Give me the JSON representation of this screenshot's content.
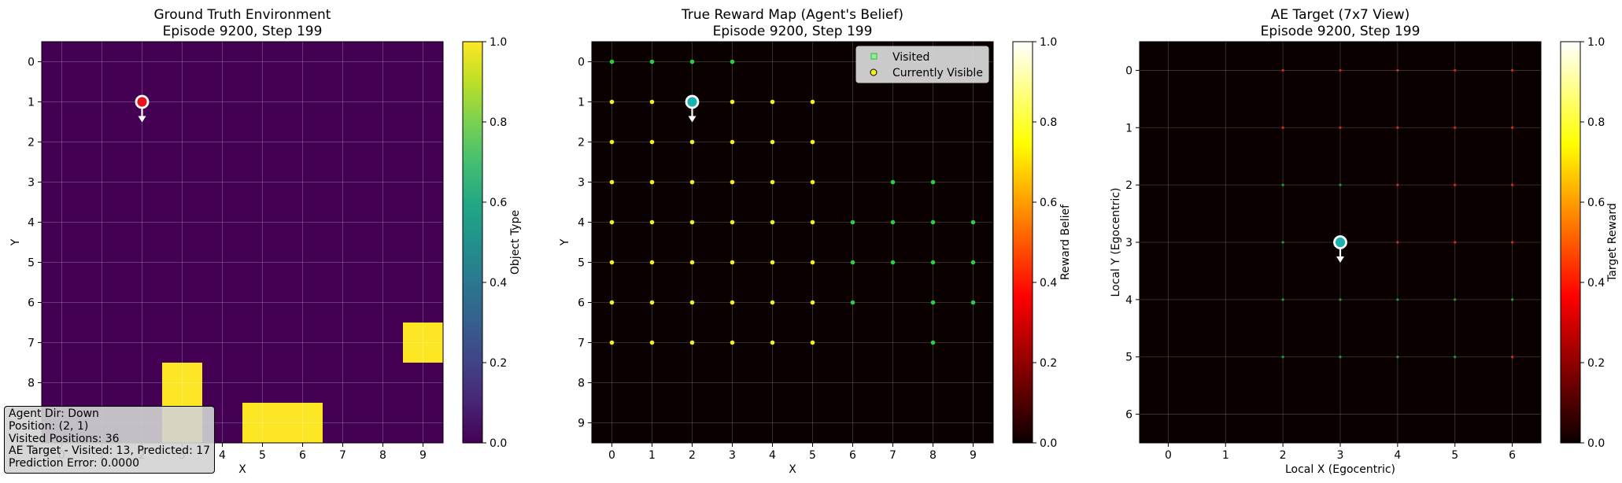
{
  "chart_data": [
    {
      "type": "heatmap",
      "title": "Ground Truth Environment",
      "subtitle": "Episode 9200, Step 199",
      "xlabel": "X",
      "ylabel": "Y",
      "colorbar_label": "Object Type",
      "colorbar_ticks": [
        "0.0",
        "0.2",
        "0.4",
        "0.6",
        "0.8",
        "1.0"
      ],
      "colormap": "viridis",
      "xlim": [
        -0.5,
        9.5
      ],
      "ylim": [
        9.5,
        -0.5
      ],
      "x_ticks": [
        "0",
        "1",
        "2",
        "3",
        "4",
        "5",
        "6",
        "7",
        "8",
        "9"
      ],
      "y_ticks": [
        "0",
        "1",
        "2",
        "3",
        "4",
        "5",
        "6",
        "7",
        "8",
        "9"
      ],
      "grid": true,
      "background_value": 0.0,
      "cells_value_1": [
        [
          9,
          7
        ],
        [
          3,
          8
        ],
        [
          3,
          9
        ],
        [
          5,
          9
        ],
        [
          6,
          9
        ]
      ],
      "agent": {
        "x": 2,
        "y": 1,
        "color": "#e8141c",
        "direction": "down"
      },
      "info_lines": [
        "Agent Dir: Down",
        "Position: (2, 1)",
        "Visited Positions: 36",
        "AE Target - Visited: 13, Predicted: 17",
        "Prediction Error: 0.0000"
      ]
    },
    {
      "type": "heatmap",
      "title": "True Reward Map (Agent's Belief)",
      "subtitle": "Episode 9200, Step 199",
      "xlabel": "X",
      "ylabel": "Y",
      "colorbar_label": "Reward Belief",
      "colorbar_ticks": [
        "0.0",
        "0.2",
        "0.4",
        "0.6",
        "0.8",
        "1.0"
      ],
      "colormap": "hot",
      "xlim": [
        -0.5,
        9.5
      ],
      "ylim": [
        9.5,
        -0.5
      ],
      "x_ticks": [
        "0",
        "1",
        "2",
        "3",
        "4",
        "5",
        "6",
        "7",
        "8",
        "9"
      ],
      "y_ticks": [
        "0",
        "1",
        "2",
        "3",
        "4",
        "5",
        "6",
        "7",
        "8",
        "9"
      ],
      "grid": true,
      "legend": {
        "location": "top-right",
        "entries": [
          {
            "label": "Visited",
            "marker": "square",
            "color": "#2ecc40"
          },
          {
            "label": "Currently Visible",
            "marker": "circle",
            "color": "#f0f020"
          }
        ]
      },
      "visited_points": [
        [
          0,
          0
        ],
        [
          1,
          0
        ],
        [
          2,
          0
        ],
        [
          3,
          0
        ],
        [
          7,
          3
        ],
        [
          8,
          3
        ],
        [
          6,
          4
        ],
        [
          7,
          4
        ],
        [
          8,
          4
        ],
        [
          9,
          4
        ],
        [
          6,
          5
        ],
        [
          7,
          5
        ],
        [
          8,
          5
        ],
        [
          9,
          5
        ],
        [
          6,
          6
        ],
        [
          8,
          6
        ],
        [
          9,
          6
        ],
        [
          8,
          7
        ]
      ],
      "visible_points": [
        [
          0,
          1
        ],
        [
          1,
          1
        ],
        [
          3,
          1
        ],
        [
          4,
          1
        ],
        [
          5,
          1
        ],
        [
          0,
          2
        ],
        [
          1,
          2
        ],
        [
          2,
          2
        ],
        [
          3,
          2
        ],
        [
          4,
          2
        ],
        [
          5,
          2
        ],
        [
          0,
          3
        ],
        [
          1,
          3
        ],
        [
          2,
          3
        ],
        [
          3,
          3
        ],
        [
          4,
          3
        ],
        [
          5,
          3
        ],
        [
          0,
          4
        ],
        [
          1,
          4
        ],
        [
          2,
          4
        ],
        [
          3,
          4
        ],
        [
          4,
          4
        ],
        [
          5,
          4
        ],
        [
          0,
          5
        ],
        [
          1,
          5
        ],
        [
          2,
          5
        ],
        [
          3,
          5
        ],
        [
          4,
          5
        ],
        [
          5,
          5
        ],
        [
          0,
          6
        ],
        [
          1,
          6
        ],
        [
          2,
          6
        ],
        [
          3,
          6
        ],
        [
          4,
          6
        ],
        [
          5,
          6
        ],
        [
          0,
          7
        ],
        [
          1,
          7
        ],
        [
          2,
          7
        ],
        [
          3,
          7
        ],
        [
          4,
          7
        ],
        [
          5,
          7
        ]
      ],
      "agent": {
        "x": 2,
        "y": 1,
        "color": "#1ab3b0",
        "direction": "down"
      }
    },
    {
      "type": "heatmap",
      "title": "AE Target (7x7 View)",
      "subtitle": "Episode 9200, Step 199",
      "xlabel": "Local X (Egocentric)",
      "ylabel": "Local Y (Egocentric)",
      "colorbar_label": "Target Reward",
      "colorbar_ticks": [
        "0.0",
        "0.2",
        "0.4",
        "0.6",
        "0.8",
        "1.0"
      ],
      "colormap": "hot",
      "xlim": [
        -0.5,
        6.5
      ],
      "ylim": [
        6.5,
        -0.5
      ],
      "x_ticks": [
        "0",
        "1",
        "2",
        "3",
        "4",
        "5",
        "6"
      ],
      "y_ticks": [
        "0",
        "1",
        "2",
        "3",
        "4",
        "5",
        "6"
      ],
      "grid": true,
      "red_points": [
        [
          2,
          0
        ],
        [
          3,
          0
        ],
        [
          4,
          0
        ],
        [
          5,
          0
        ],
        [
          6,
          0
        ],
        [
          2,
          1
        ],
        [
          3,
          1
        ],
        [
          4,
          1
        ],
        [
          5,
          1
        ],
        [
          6,
          1
        ],
        [
          4,
          2
        ],
        [
          5,
          2
        ],
        [
          6,
          2
        ],
        [
          4,
          3
        ],
        [
          5,
          3
        ],
        [
          6,
          3
        ],
        [
          6,
          5
        ]
      ],
      "green_points": [
        [
          2,
          2
        ],
        [
          3,
          2
        ],
        [
          2,
          3
        ],
        [
          2,
          4
        ],
        [
          3,
          4
        ],
        [
          4,
          4
        ],
        [
          5,
          4
        ],
        [
          6,
          4
        ],
        [
          2,
          5
        ],
        [
          3,
          5
        ],
        [
          4,
          5
        ],
        [
          5,
          5
        ]
      ],
      "agent": {
        "x": 3,
        "y": 3,
        "color": "#1ab3b0",
        "direction": "down"
      }
    }
  ]
}
